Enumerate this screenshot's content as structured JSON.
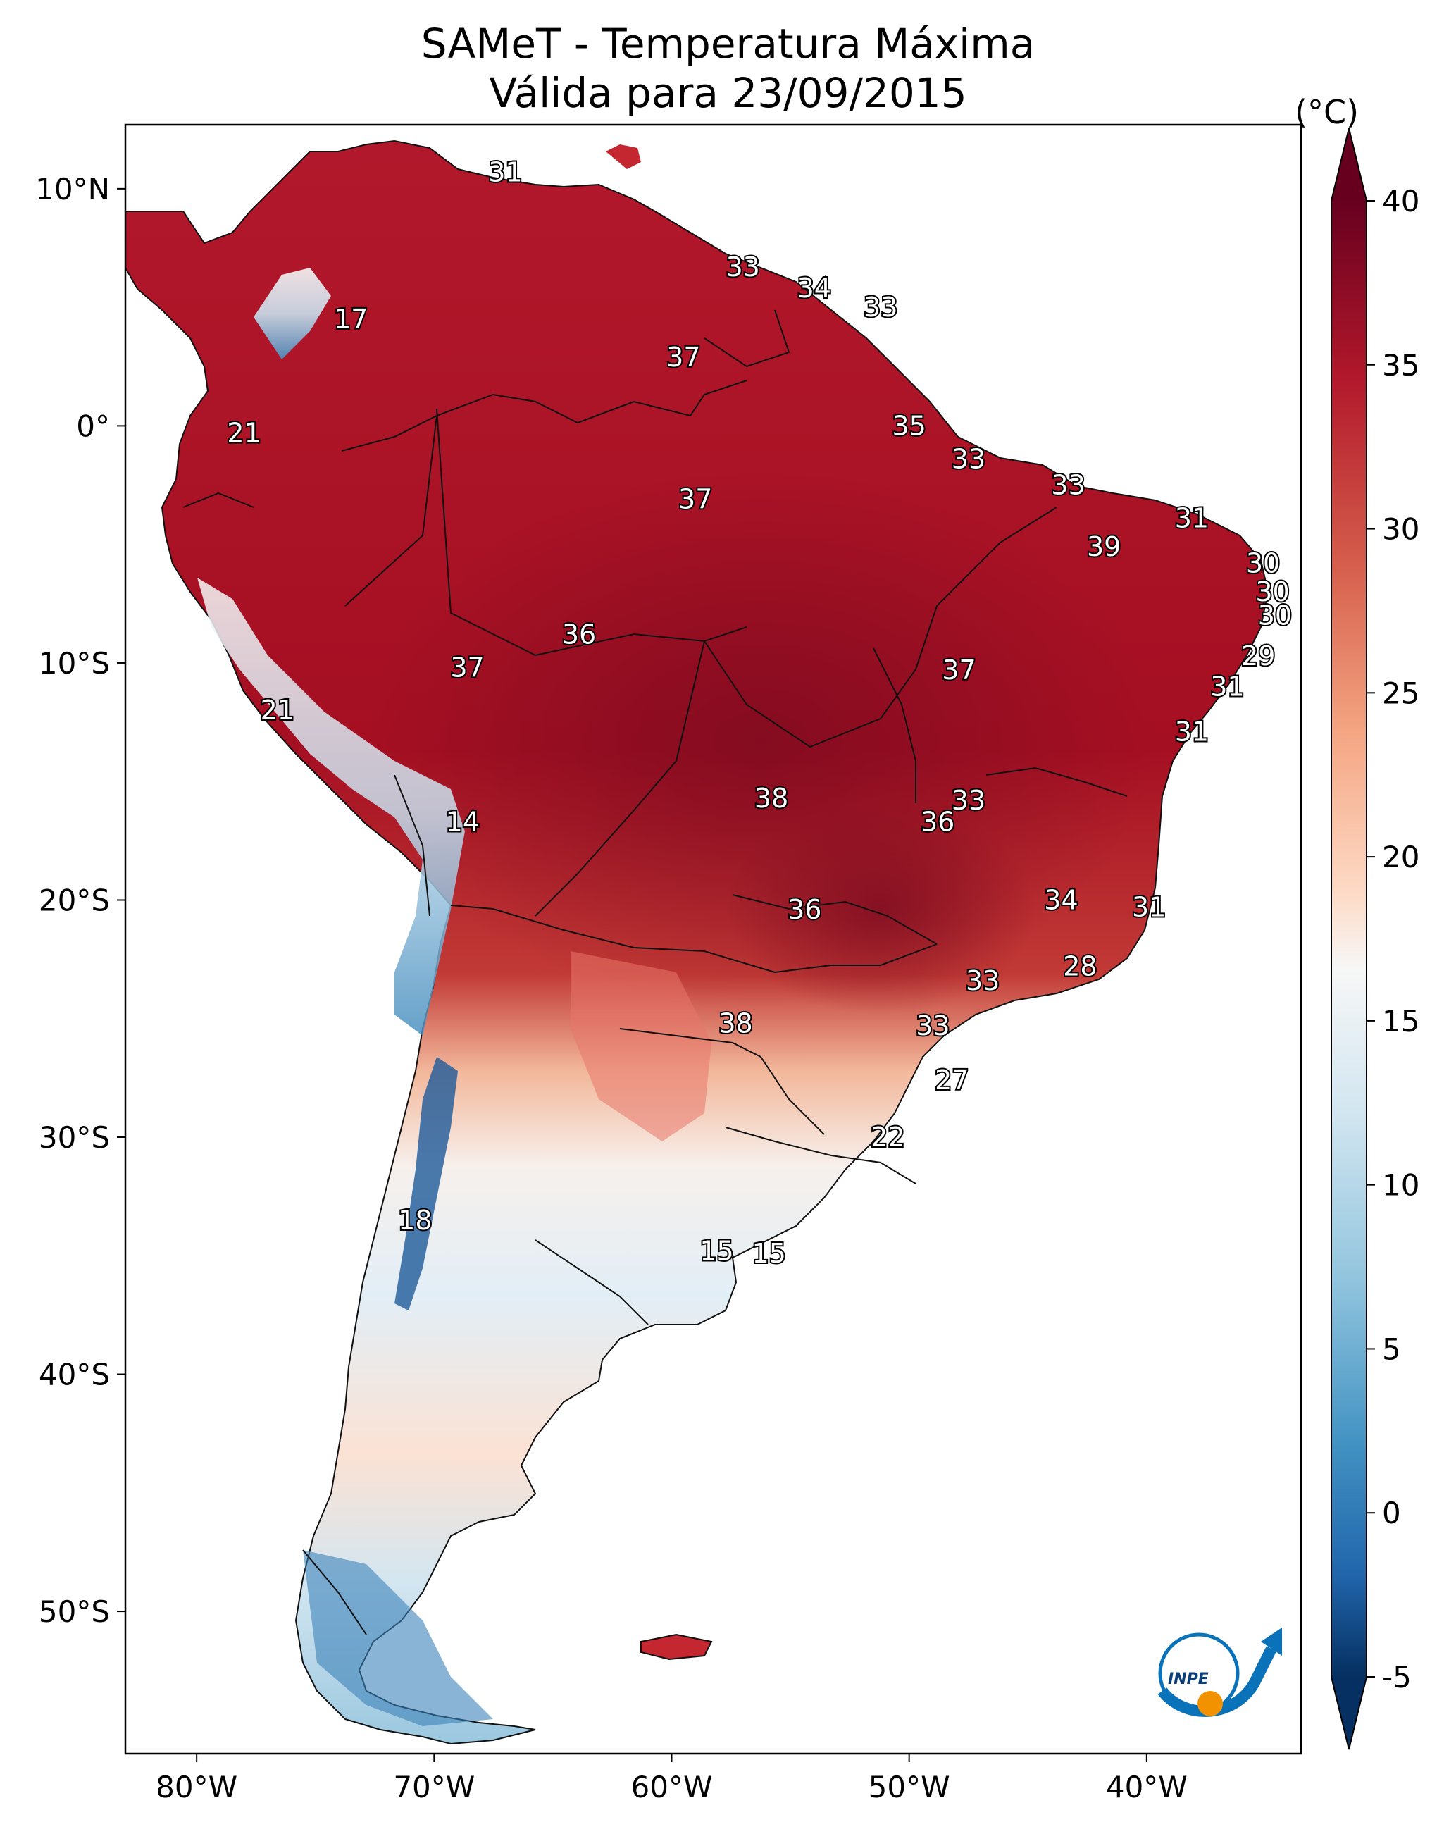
{
  "title": {
    "line1": "SAMeT - Temperatura Máxima",
    "line2": "Válida para 23/09/2015"
  },
  "colorbar": {
    "unit": "(°C)",
    "ticks": [
      "40",
      "35",
      "30",
      "25",
      "20",
      "15",
      "10",
      "5",
      "0",
      "-5"
    ],
    "min": -5,
    "max": 40
  },
  "axes": {
    "lat_labels": [
      "10°N",
      "0°",
      "10°S",
      "20°S",
      "30°S",
      "40°S",
      "50°S"
    ],
    "lon_labels": [
      "80°W",
      "70°W",
      "60°W",
      "50°W",
      "40°W"
    ]
  },
  "temperature_labels": [
    {
      "v": "31",
      "lon": -67,
      "lat": 10.7
    },
    {
      "v": "33",
      "lon": -57,
      "lat": 6.7
    },
    {
      "v": "34",
      "lon": -54,
      "lat": 5.8
    },
    {
      "v": "33",
      "lon": -51.2,
      "lat": 5.0
    },
    {
      "v": "17",
      "lon": -73.5,
      "lat": 4.5
    },
    {
      "v": "37",
      "lon": -59.5,
      "lat": 2.9
    },
    {
      "v": "35",
      "lon": -50,
      "lat": 0.0
    },
    {
      "v": "21",
      "lon": -78,
      "lat": -0.3
    },
    {
      "v": "33",
      "lon": -47.5,
      "lat": -1.4
    },
    {
      "v": "33",
      "lon": -43.3,
      "lat": -2.5
    },
    {
      "v": "37",
      "lon": -59,
      "lat": -3.1
    },
    {
      "v": "31",
      "lon": -38.1,
      "lat": -3.9
    },
    {
      "v": "39",
      "lon": -41.8,
      "lat": -5.1
    },
    {
      "v": "30",
      "lon": -35.1,
      "lat": -5.8
    },
    {
      "v": "30",
      "lon": -34.7,
      "lat": -7.0
    },
    {
      "v": "30",
      "lon": -34.6,
      "lat": -8.0
    },
    {
      "v": "36",
      "lon": -63.9,
      "lat": -8.8
    },
    {
      "v": "29",
      "lon": -35.3,
      "lat": -9.7
    },
    {
      "v": "37",
      "lon": -68.6,
      "lat": -10.2
    },
    {
      "v": "37",
      "lon": -47.9,
      "lat": -10.3
    },
    {
      "v": "31",
      "lon": -36.6,
      "lat": -11.0
    },
    {
      "v": "21",
      "lon": -76.6,
      "lat": -12.0
    },
    {
      "v": "31",
      "lon": -38.1,
      "lat": -12.9
    },
    {
      "v": "38",
      "lon": -55.8,
      "lat": -15.7
    },
    {
      "v": "33",
      "lon": -47.5,
      "lat": -15.8
    },
    {
      "v": "36",
      "lon": -48.8,
      "lat": -16.7
    },
    {
      "v": "14",
      "lon": -68.8,
      "lat": -16.7
    },
    {
      "v": "34",
      "lon": -43.6,
      "lat": -20.0
    },
    {
      "v": "36",
      "lon": -54.4,
      "lat": -20.4
    },
    {
      "v": "31",
      "lon": -39.9,
      "lat": -20.3
    },
    {
      "v": "28",
      "lon": -42.8,
      "lat": -22.8
    },
    {
      "v": "33",
      "lon": -46.9,
      "lat": -23.4
    },
    {
      "v": "38",
      "lon": -57.3,
      "lat": -25.2
    },
    {
      "v": "33",
      "lon": -49,
      "lat": -25.3
    },
    {
      "v": "27",
      "lon": -48.2,
      "lat": -27.6
    },
    {
      "v": "22",
      "lon": -50.9,
      "lat": -30.0
    },
    {
      "v": "18",
      "lon": -70.8,
      "lat": -33.5
    },
    {
      "v": "15",
      "lon": -58.1,
      "lat": -34.8
    },
    {
      "v": "15",
      "lon": -55.9,
      "lat": -34.9
    }
  ],
  "logo": {
    "text": "INPE"
  }
}
